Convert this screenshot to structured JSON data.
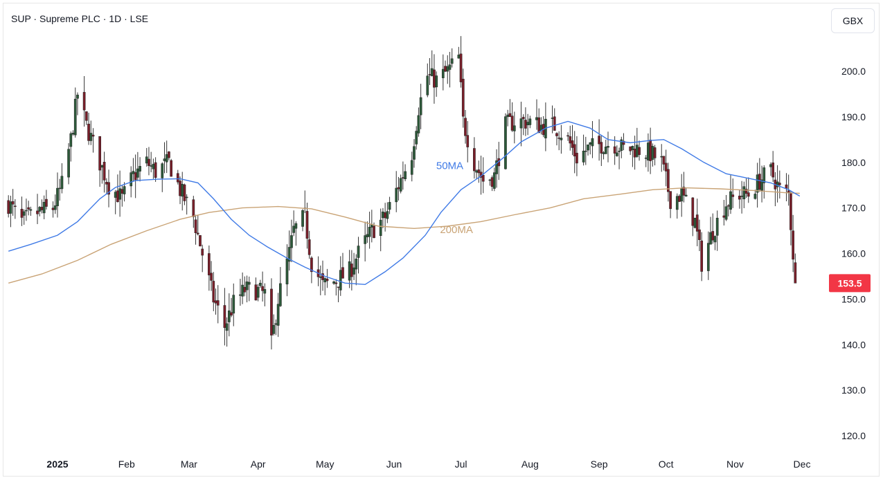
{
  "header": {
    "title": "SUP · Supreme PLC · 1D · LSE",
    "currency": "GBX"
  },
  "chart_data": {
    "type": "candlestick",
    "ylim": [
      117,
      206
    ],
    "y_ticks": [
      "120.0",
      "130.0",
      "140.0",
      "150.0",
      "160.0",
      "170.0",
      "180.0",
      "190.0",
      "200.0"
    ],
    "x_ticks": [
      {
        "label": "2025",
        "date": "2025-01-01",
        "bold": true
      },
      {
        "label": "Feb",
        "date": "2025-02-01"
      },
      {
        "label": "Mar",
        "date": "2025-03-01"
      },
      {
        "label": "Apr",
        "date": "2025-04-01"
      },
      {
        "label": "May",
        "date": "2025-05-01"
      },
      {
        "label": "Jun",
        "date": "2025-06-01"
      },
      {
        "label": "Jul",
        "date": "2025-07-01"
      },
      {
        "label": "Aug",
        "date": "2025-08-01"
      },
      {
        "label": "Sep",
        "date": "2025-09-01"
      },
      {
        "label": "Oct",
        "date": "2025-10-01"
      },
      {
        "label": "Nov",
        "date": "2025-11-01"
      },
      {
        "label": "Dec",
        "date": "2025-12-01"
      }
    ],
    "last_price": {
      "label": "153.5",
      "value": 153.5,
      "color": "#f23645"
    },
    "colors": {
      "up": "#2d5a3a",
      "down": "#7a1f2a",
      "ma50": "#3f7ae6",
      "ma200": "#c9a375",
      "grid": "#ffffff"
    },
    "close_path": [
      [
        "2024-12-10",
        171
      ],
      [
        "2024-12-16",
        167
      ],
      [
        "2024-12-23",
        169
      ],
      [
        "2024-12-30",
        170
      ],
      [
        "2025-01-03",
        175
      ],
      [
        "2025-01-07",
        185
      ],
      [
        "2025-01-10",
        195
      ],
      [
        "2025-01-14",
        188
      ],
      [
        "2025-01-20",
        180
      ],
      [
        "2025-01-24",
        175
      ],
      [
        "2025-01-30",
        172
      ],
      [
        "2025-02-04",
        177
      ],
      [
        "2025-02-10",
        180
      ],
      [
        "2025-02-14",
        178
      ],
      [
        "2025-02-20",
        180
      ],
      [
        "2025-02-25",
        174
      ],
      [
        "2025-03-03",
        168
      ],
      [
        "2025-03-07",
        160
      ],
      [
        "2025-03-12",
        150
      ],
      [
        "2025-03-17",
        144
      ],
      [
        "2025-03-21",
        149
      ],
      [
        "2025-03-26",
        152
      ],
      [
        "2025-03-31",
        152
      ],
      [
        "2025-04-04",
        151
      ],
      [
        "2025-04-07",
        140
      ],
      [
        "2025-04-10",
        150
      ],
      [
        "2025-04-15",
        160
      ],
      [
        "2025-04-17",
        165
      ],
      [
        "2025-04-22",
        168
      ],
      [
        "2025-04-25",
        158
      ],
      [
        "2025-04-30",
        153
      ],
      [
        "2025-05-06",
        154
      ],
      [
        "2025-05-12",
        156
      ],
      [
        "2025-05-16",
        160
      ],
      [
        "2025-05-22",
        165
      ],
      [
        "2025-05-28",
        168
      ],
      [
        "2025-06-03",
        175
      ],
      [
        "2025-06-09",
        182
      ],
      [
        "2025-06-12",
        192
      ],
      [
        "2025-06-16",
        199
      ],
      [
        "2025-06-20",
        198
      ],
      [
        "2025-06-25",
        200
      ],
      [
        "2025-06-30",
        203
      ],
      [
        "2025-07-02",
        189
      ],
      [
        "2025-07-07",
        180
      ],
      [
        "2025-07-11",
        176
      ],
      [
        "2025-07-16",
        177
      ],
      [
        "2025-07-21",
        188
      ],
      [
        "2025-07-25",
        189
      ],
      [
        "2025-07-31",
        189
      ],
      [
        "2025-08-06",
        188
      ],
      [
        "2025-08-12",
        188
      ],
      [
        "2025-08-18",
        185
      ],
      [
        "2025-08-22",
        181
      ],
      [
        "2025-08-27",
        183
      ],
      [
        "2025-09-02",
        184
      ],
      [
        "2025-09-08",
        184
      ],
      [
        "2025-09-12",
        183
      ],
      [
        "2025-09-18",
        183
      ],
      [
        "2025-09-24",
        182
      ],
      [
        "2025-09-29",
        180
      ],
      [
        "2025-10-03",
        172
      ],
      [
        "2025-10-08",
        173
      ],
      [
        "2025-10-14",
        167
      ],
      [
        "2025-10-17",
        158
      ],
      [
        "2025-10-22",
        165
      ],
      [
        "2025-10-28",
        171
      ],
      [
        "2025-11-03",
        173
      ],
      [
        "2025-11-07",
        173
      ],
      [
        "2025-11-12",
        176
      ],
      [
        "2025-11-17",
        178
      ],
      [
        "2025-11-21",
        174
      ],
      [
        "2025-11-25",
        173
      ],
      [
        "2025-11-28",
        153.5
      ]
    ],
    "ma50": [
      [
        "2024-12-10",
        160.5
      ],
      [
        "2024-12-20",
        162
      ],
      [
        "2025-01-01",
        164
      ],
      [
        "2025-01-10",
        167
      ],
      [
        "2025-01-20",
        172
      ],
      [
        "2025-01-27",
        174.5
      ],
      [
        "2025-02-05",
        176
      ],
      [
        "2025-02-15",
        176.3
      ],
      [
        "2025-02-25",
        176.4
      ],
      [
        "2025-03-05",
        175.5
      ],
      [
        "2025-03-12",
        172
      ],
      [
        "2025-03-20",
        167.5
      ],
      [
        "2025-03-28",
        164
      ],
      [
        "2025-04-05",
        161.5
      ],
      [
        "2025-04-14",
        159
      ],
      [
        "2025-04-22",
        157
      ],
      [
        "2025-05-01",
        155
      ],
      [
        "2025-05-10",
        153.5
      ],
      [
        "2025-05-19",
        153.2
      ],
      [
        "2025-05-28",
        156
      ],
      [
        "2025-06-05",
        159
      ],
      [
        "2025-06-15",
        164
      ],
      [
        "2025-06-22",
        169
      ],
      [
        "2025-07-01",
        174
      ],
      [
        "2025-07-10",
        177
      ],
      [
        "2025-07-20",
        181
      ],
      [
        "2025-07-28",
        184.5
      ],
      [
        "2025-08-08",
        187.5
      ],
      [
        "2025-08-18",
        189
      ],
      [
        "2025-08-28",
        187.5
      ],
      [
        "2025-09-05",
        185
      ],
      [
        "2025-09-15",
        184.3
      ],
      [
        "2025-09-24",
        184.8
      ],
      [
        "2025-09-30",
        185
      ],
      [
        "2025-10-08",
        183
      ],
      [
        "2025-10-18",
        180
      ],
      [
        "2025-10-28",
        177.5
      ],
      [
        "2025-11-07",
        176.5
      ],
      [
        "2025-11-17",
        175.5
      ],
      [
        "2025-11-25",
        174
      ],
      [
        "2025-11-30",
        172.6
      ]
    ],
    "ma200": [
      [
        "2024-12-10",
        153.5
      ],
      [
        "2024-12-25",
        155.5
      ],
      [
        "2025-01-10",
        158.5
      ],
      [
        "2025-01-25",
        162
      ],
      [
        "2025-02-10",
        165
      ],
      [
        "2025-02-25",
        167.5
      ],
      [
        "2025-03-10",
        169
      ],
      [
        "2025-03-25",
        170
      ],
      [
        "2025-04-10",
        170.3
      ],
      [
        "2025-04-25",
        169.8
      ],
      [
        "2025-05-10",
        168
      ],
      [
        "2025-05-25",
        166
      ],
      [
        "2025-06-10",
        165.5
      ],
      [
        "2025-06-25",
        166
      ],
      [
        "2025-07-10",
        167
      ],
      [
        "2025-07-25",
        168.5
      ],
      [
        "2025-08-10",
        170
      ],
      [
        "2025-08-25",
        172
      ],
      [
        "2025-09-10",
        173
      ],
      [
        "2025-09-25",
        174
      ],
      [
        "2025-10-10",
        174.4
      ],
      [
        "2025-10-25",
        174.2
      ],
      [
        "2025-11-10",
        173.8
      ],
      [
        "2025-11-25",
        173.3
      ],
      [
        "2025-11-30",
        173.2
      ]
    ],
    "ma_labels": [
      {
        "text": "50MA",
        "date": "2025-06-26",
        "value": 178.5,
        "series": "ma50"
      },
      {
        "text": "200MA",
        "date": "2025-06-29",
        "value": 164.5,
        "series": "ma200"
      }
    ]
  }
}
